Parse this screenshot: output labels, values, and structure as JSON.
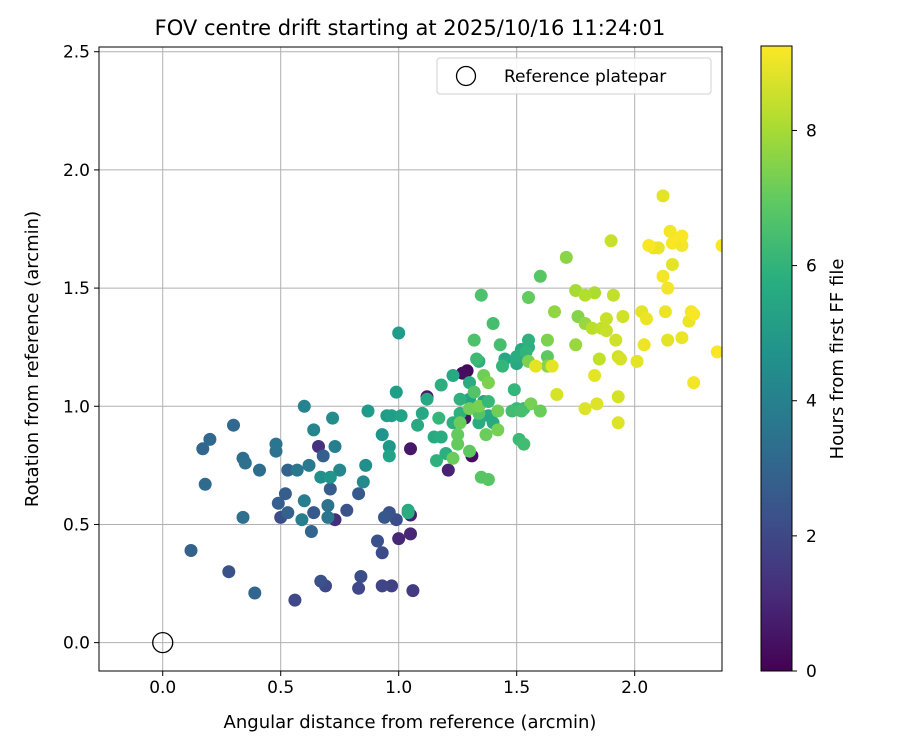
{
  "chart_data": {
    "type": "scatter",
    "title": "FOV centre drift starting at 2025/10/16 11:24:01",
    "xlabel": "Angular distance from reference (arcmin)",
    "ylabel": "Rotation from reference (arcmin)",
    "xlim": [
      -0.27,
      2.37
    ],
    "ylim": [
      -0.12,
      2.52
    ],
    "xticks": [
      {
        "v": 0.0,
        "label": "0.0"
      },
      {
        "v": 0.5,
        "label": "0.5"
      },
      {
        "v": 1.0,
        "label": "1.0"
      },
      {
        "v": 1.5,
        "label": "1.5"
      },
      {
        "v": 2.0,
        "label": "2.0"
      }
    ],
    "yticks": [
      {
        "v": 0.0,
        "label": "0.0"
      },
      {
        "v": 0.5,
        "label": "0.5"
      },
      {
        "v": 1.0,
        "label": "1.0"
      },
      {
        "v": 1.5,
        "label": "1.5"
      },
      {
        "v": 2.0,
        "label": "2.0"
      },
      {
        "v": 2.5,
        "label": "2.5"
      }
    ],
    "grid": true,
    "colorbar": {
      "label": "Hours from first FF file",
      "colormap": "viridis",
      "range": [
        0,
        9.25
      ],
      "ticks": [
        {
          "v": 0,
          "label": "0"
        },
        {
          "v": 2,
          "label": "2"
        },
        {
          "v": 4,
          "label": "4"
        },
        {
          "v": 6,
          "label": "6"
        },
        {
          "v": 8,
          "label": "8"
        }
      ]
    },
    "legend": {
      "position": "top-right",
      "entries": [
        {
          "label": "Reference platepar",
          "marker": "open-circle"
        }
      ]
    },
    "reference_point": {
      "x": 0.0,
      "y": 0.0
    },
    "points": [
      [
        1.29,
        1.15,
        0.2
      ],
      [
        1.27,
        1.14,
        0.3
      ],
      [
        1.31,
        0.79,
        0.3
      ],
      [
        1.28,
        0.95,
        0.5
      ],
      [
        1.12,
        1.04,
        0.6
      ],
      [
        1.05,
        0.82,
        0.6
      ],
      [
        1.05,
        0.54,
        0.8
      ],
      [
        1.05,
        0.46,
        1.0
      ],
      [
        1.21,
        0.73,
        0.9
      ],
      [
        1.0,
        0.44,
        1.0
      ],
      [
        0.73,
        0.52,
        1.2
      ],
      [
        0.66,
        0.83,
        1.3
      ],
      [
        1.06,
        0.22,
        1.6
      ],
      [
        0.97,
        0.24,
        1.8
      ],
      [
        0.93,
        0.24,
        1.9
      ],
      [
        0.56,
        0.18,
        2.0
      ],
      [
        0.69,
        0.24,
        2.0
      ],
      [
        0.83,
        0.23,
        2.0
      ],
      [
        0.84,
        0.28,
        2.2
      ],
      [
        0.67,
        0.26,
        2.3
      ],
      [
        0.28,
        0.3,
        2.3
      ],
      [
        0.93,
        0.38,
        2.1
      ],
      [
        0.99,
        0.52,
        2.2
      ],
      [
        0.91,
        0.43,
        2.3
      ],
      [
        0.96,
        0.55,
        2.4
      ],
      [
        0.5,
        0.53,
        2.2
      ],
      [
        0.78,
        0.56,
        2.4
      ],
      [
        0.64,
        0.55,
        2.6
      ],
      [
        0.83,
        0.63,
        2.6
      ],
      [
        0.71,
        0.65,
        2.7
      ],
      [
        0.52,
        0.63,
        2.7
      ],
      [
        0.49,
        0.59,
        2.8
      ],
      [
        0.53,
        0.55,
        2.9
      ],
      [
        0.63,
        0.47,
        3.0
      ],
      [
        0.68,
        0.79,
        2.8
      ],
      [
        0.53,
        0.73,
        2.9
      ],
      [
        0.94,
        0.53,
        2.5
      ],
      [
        0.12,
        0.39,
        2.9
      ],
      [
        0.39,
        0.21,
        3.0
      ],
      [
        0.17,
        0.82,
        3.0
      ],
      [
        0.2,
        0.86,
        3.1
      ],
      [
        0.3,
        0.92,
        3.1
      ],
      [
        0.18,
        0.67,
        3.2
      ],
      [
        0.34,
        0.78,
        3.3
      ],
      [
        0.34,
        0.53,
        3.4
      ],
      [
        0.41,
        0.73,
        3.3
      ],
      [
        0.35,
        0.76,
        3.4
      ],
      [
        0.48,
        0.81,
        3.5
      ],
      [
        0.48,
        0.84,
        3.6
      ],
      [
        0.7,
        0.53,
        3.6
      ],
      [
        0.7,
        0.58,
        3.5
      ],
      [
        0.57,
        0.73,
        3.7
      ],
      [
        0.62,
        0.75,
        3.8
      ],
      [
        0.6,
        0.6,
        3.9
      ],
      [
        0.59,
        0.52,
        4.0
      ],
      [
        0.73,
        0.83,
        4.0
      ],
      [
        0.6,
        1.0,
        4.1
      ],
      [
        0.64,
        0.9,
        4.2
      ],
      [
        0.75,
        0.73,
        4.3
      ],
      [
        0.85,
        0.68,
        4.4
      ],
      [
        0.72,
        0.95,
        4.5
      ],
      [
        0.67,
        0.7,
        4.6
      ],
      [
        0.86,
        0.75,
        4.6
      ],
      [
        0.71,
        0.7,
        4.8
      ],
      [
        0.93,
        0.88,
        4.8
      ],
      [
        0.96,
        0.83,
        4.9
      ],
      [
        0.87,
        0.98,
        5.0
      ],
      [
        0.95,
        0.96,
        5.1
      ],
      [
        1.0,
        1.31,
        5.1
      ],
      [
        0.97,
        0.96,
        5.2
      ],
      [
        0.99,
        1.06,
        5.2
      ],
      [
        1.01,
        0.96,
        5.3
      ],
      [
        0.96,
        0.79,
        5.3
      ],
      [
        1.04,
        0.56,
        5.5
      ],
      [
        1.04,
        0.55,
        5.7
      ],
      [
        1.08,
        0.92,
        5.6
      ],
      [
        1.1,
        0.97,
        5.5
      ],
      [
        1.12,
        1.03,
        5.5
      ],
      [
        1.15,
        0.87,
        5.6
      ],
      [
        1.18,
        0.87,
        5.7
      ],
      [
        1.2,
        0.8,
        5.8
      ],
      [
        1.16,
        0.77,
        5.9
      ],
      [
        1.23,
        0.93,
        5.8
      ],
      [
        1.26,
        0.97,
        5.9
      ],
      [
        1.18,
        1.09,
        5.8
      ],
      [
        1.23,
        1.13,
        5.6
      ],
      [
        1.3,
        1.03,
        5.4
      ],
      [
        1.36,
        1.02,
        5.4
      ],
      [
        1.38,
        0.96,
        5.5
      ],
      [
        1.4,
        0.93,
        5.6
      ],
      [
        1.34,
        0.93,
        5.7
      ],
      [
        1.3,
        1.1,
        5.7
      ],
      [
        1.34,
        1.19,
        5.8
      ],
      [
        1.45,
        1.2,
        5.5
      ],
      [
        1.5,
        1.18,
        5.6
      ],
      [
        1.52,
        1.24,
        5.6
      ],
      [
        1.5,
        1.21,
        5.7
      ],
      [
        1.55,
        1.25,
        5.8
      ],
      [
        1.55,
        1.28,
        5.9
      ],
      [
        1.54,
        1.23,
        6.0
      ],
      [
        1.44,
        1.17,
        6.1
      ],
      [
        1.49,
        1.07,
        6.1
      ],
      [
        1.5,
        0.99,
        6.2
      ],
      [
        1.53,
        0.99,
        6.3
      ],
      [
        1.51,
        0.86,
        6.3
      ],
      [
        1.53,
        0.84,
        6.4
      ],
      [
        1.48,
        0.98,
        6.4
      ],
      [
        1.43,
        1.26,
        6.5
      ],
      [
        1.4,
        1.35,
        6.5
      ],
      [
        1.35,
        1.47,
        6.6
      ],
      [
        1.32,
        1.28,
        6.6
      ],
      [
        1.32,
        1.06,
        6.7
      ],
      [
        1.34,
        0.97,
        6.7
      ],
      [
        1.35,
        0.7,
        6.8
      ],
      [
        1.38,
        0.69,
        6.8
      ],
      [
        1.3,
        0.81,
        6.9
      ],
      [
        1.25,
        0.88,
        7.0
      ],
      [
        1.25,
        0.84,
        7.0
      ],
      [
        1.23,
        0.78,
        7.1
      ],
      [
        1.26,
        0.93,
        7.1
      ],
      [
        1.3,
        0.99,
        7.2
      ],
      [
        1.34,
        1.0,
        7.3
      ],
      [
        1.37,
        0.88,
        7.1
      ],
      [
        1.42,
        0.98,
        7.2
      ],
      [
        1.42,
        0.9,
        7.3
      ],
      [
        1.36,
        1.13,
        7.2
      ],
      [
        1.38,
        1.1,
        7.4
      ],
      [
        1.56,
        1.01,
        7.3
      ],
      [
        1.55,
        1.19,
        7.4
      ],
      [
        1.6,
        1.55,
        6.8
      ],
      [
        1.55,
        1.46,
        7.0
      ],
      [
        1.63,
        1.21,
        6.9
      ],
      [
        1.63,
        1.28,
        7.4
      ],
      [
        1.6,
        0.98,
        7.1
      ],
      [
        1.63,
        1.17,
        7.6
      ],
      [
        1.71,
        1.63,
        7.6
      ],
      [
        1.66,
        1.4,
        7.7
      ],
      [
        1.75,
        1.26,
        7.8
      ],
      [
        1.76,
        1.38,
        7.5
      ],
      [
        1.79,
        1.35,
        7.8
      ],
      [
        1.75,
        1.49,
        8.0
      ],
      [
        1.83,
        1.48,
        8.1
      ],
      [
        1.79,
        1.47,
        8.2
      ],
      [
        1.82,
        1.33,
        8.3
      ],
      [
        1.85,
        1.2,
        8.4
      ],
      [
        1.86,
        1.33,
        8.4
      ],
      [
        1.88,
        1.32,
        8.5
      ],
      [
        1.88,
        1.37,
        8.5
      ],
      [
        1.91,
        1.47,
        8.4
      ],
      [
        1.92,
        1.28,
        8.6
      ],
      [
        1.93,
        1.21,
        8.6
      ],
      [
        1.95,
        1.38,
        8.6
      ],
      [
        1.94,
        1.2,
        8.7
      ],
      [
        1.93,
        1.04,
        8.7
      ],
      [
        1.93,
        0.93,
        8.8
      ],
      [
        1.84,
        1.01,
        8.8
      ],
      [
        1.83,
        1.13,
        8.9
      ],
      [
        1.79,
        0.99,
        8.8
      ],
      [
        1.9,
        1.7,
        8.5
      ],
      [
        1.65,
        1.17,
        8.9
      ],
      [
        1.67,
        1.05,
        8.7
      ],
      [
        2.01,
        1.19,
        8.9
      ],
      [
        2.03,
        1.4,
        8.9
      ],
      [
        2.05,
        1.37,
        9.0
      ],
      [
        2.04,
        1.26,
        9.0
      ],
      [
        2.08,
        1.67,
        9.0
      ],
      [
        2.12,
        1.89,
        8.9
      ],
      [
        2.1,
        1.67,
        9.0
      ],
      [
        2.12,
        1.55,
        9.1
      ],
      [
        2.14,
        1.5,
        9.1
      ],
      [
        2.13,
        1.4,
        9.0
      ],
      [
        2.14,
        1.28,
        8.9
      ],
      [
        2.16,
        1.6,
        8.9
      ],
      [
        2.15,
        1.74,
        9.1
      ],
      [
        2.16,
        1.69,
        9.2
      ],
      [
        2.19,
        1.71,
        9.2
      ],
      [
        2.2,
        1.68,
        9.1
      ],
      [
        2.2,
        1.29,
        9.0
      ],
      [
        2.23,
        1.36,
        9.0
      ],
      [
        2.24,
        1.4,
        9.1
      ],
      [
        2.25,
        1.39,
        9.2
      ],
      [
        2.25,
        1.1,
        9.1
      ],
      [
        2.35,
        1.23,
        9.2
      ],
      [
        2.37,
        1.68,
        9.2
      ],
      [
        2.2,
        1.72,
        9.2
      ],
      [
        2.06,
        1.68,
        9.2
      ],
      [
        1.58,
        1.17,
        8.9
      ],
      [
        1.33,
        1.2,
        6.3
      ],
      [
        1.38,
        1.02,
        6.2
      ],
      [
        1.52,
        0.98,
        6.5
      ],
      [
        1.26,
        1.03,
        5.9
      ],
      [
        1.17,
        0.95,
        6.1
      ]
    ]
  }
}
